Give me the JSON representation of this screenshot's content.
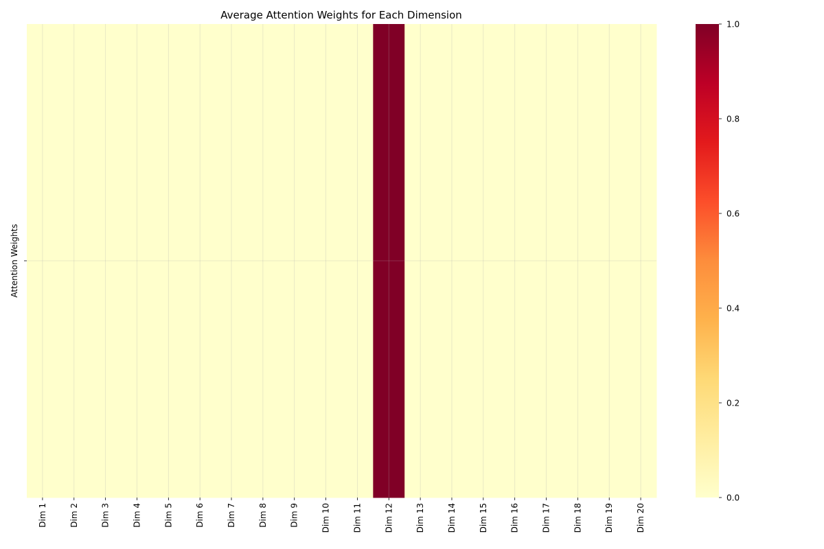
{
  "chart_data": {
    "type": "heatmap",
    "title": "Average Attention Weights for Each Dimension",
    "xlabel": "",
    "ylabel": "Attention Weights",
    "x_categories": [
      "Dim 1",
      "Dim 2",
      "Dim 3",
      "Dim 4",
      "Dim 5",
      "Dim 6",
      "Dim 7",
      "Dim 8",
      "Dim 9",
      "Dim 10",
      "Dim 11",
      "Dim 12",
      "Dim 13",
      "Dim 14",
      "Dim 15",
      "Dim 16",
      "Dim 17",
      "Dim 18",
      "Dim 19",
      "Dim 20"
    ],
    "y_categories": [
      ""
    ],
    "values": [
      [
        0,
        0,
        0,
        0,
        0,
        0,
        0,
        0,
        0,
        0,
        0,
        1,
        0,
        0,
        0,
        0,
        0,
        0,
        0,
        0
      ]
    ],
    "colorbar": {
      "min": 0.0,
      "max": 1.0,
      "ticks": [
        "0.0",
        "0.2",
        "0.4",
        "0.6",
        "0.8",
        "1.0"
      ],
      "colormap": "YlOrRd",
      "stops": [
        "#ffffcc",
        "#ffeda0",
        "#fed976",
        "#feb24c",
        "#fd8d3c",
        "#fc4e2a",
        "#e31a1c",
        "#bd0026",
        "#800026"
      ]
    },
    "grid": true
  }
}
